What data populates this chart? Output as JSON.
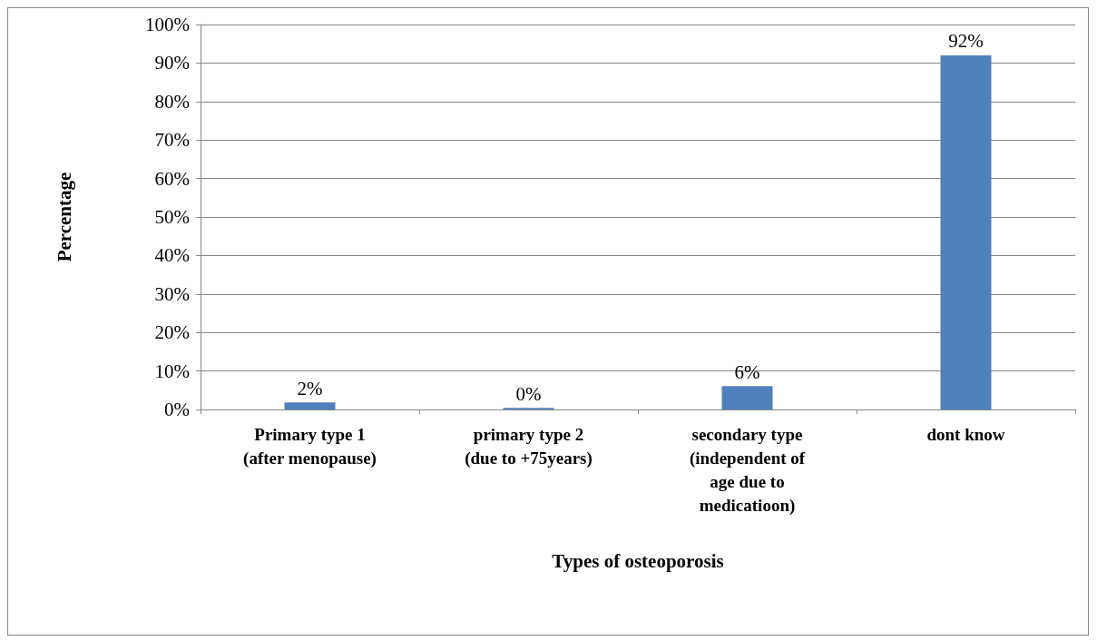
{
  "chart_data": {
    "type": "bar",
    "xlabel": "Types of osteoporosis",
    "ylabel": "Percentage",
    "categories": [
      "Primary type 1\n(after menopause)",
      "primary type 2\n(due to +75years)",
      "secondary type\n(independent of\nage due to\nmedicatioon)",
      "dont know"
    ],
    "values": [
      1.8,
      0.4,
      6.1,
      92
    ],
    "value_labels": [
      "2%",
      "0%",
      "6%",
      "92%"
    ],
    "color": "#4f81bd",
    "ylim": [
      0,
      100
    ],
    "yticks": [
      {
        "value": 0,
        "label": "0%"
      },
      {
        "value": 10,
        "label": "10%"
      },
      {
        "value": 20,
        "label": "20%"
      },
      {
        "value": 30,
        "label": "30%"
      },
      {
        "value": 40,
        "label": "40%"
      },
      {
        "value": 50,
        "label": "50%"
      },
      {
        "value": 60,
        "label": "60%"
      },
      {
        "value": 70,
        "label": "70%"
      },
      {
        "value": 80,
        "label": "80%"
      },
      {
        "value": 90,
        "label": "90%"
      },
      {
        "value": 100,
        "label": "100%"
      }
    ],
    "grid": "y"
  }
}
